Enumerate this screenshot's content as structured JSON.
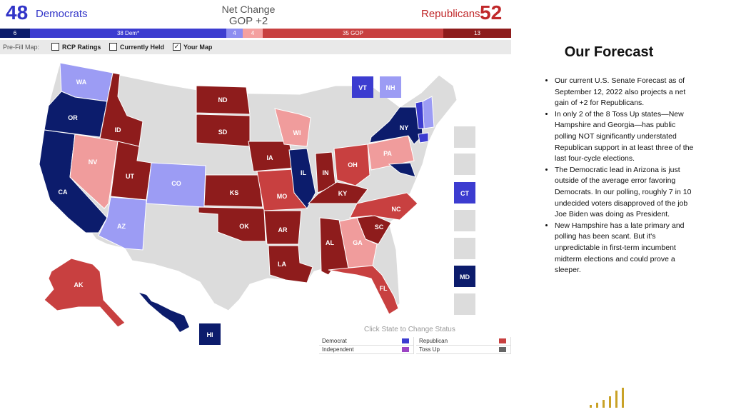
{
  "header": {
    "dem_count": "48",
    "dem_label": "Democrats",
    "net_change_label": "Net Change",
    "net_change_value": "GOP +2",
    "rep_label": "Republicans",
    "rep_count": "52"
  },
  "seat_bar": {
    "safe_dem": "6",
    "dem": "38 Dem*",
    "lean_dem": "4",
    "lean_rep": "4",
    "rep": "35 GOP",
    "safe_rep": "13"
  },
  "prefill": {
    "label": "Pre-Fill Map:",
    "options": [
      {
        "label": "RCP Ratings",
        "checked": false
      },
      {
        "label": "Currently Held",
        "checked": false
      },
      {
        "label": "Your Map",
        "checked": true
      }
    ]
  },
  "states": {
    "WA": "WA",
    "OR": "OR",
    "CA": "CA",
    "ID": "ID",
    "NV": "NV",
    "UT": "UT",
    "AZ": "AZ",
    "CO": "CO",
    "ND": "ND",
    "SD": "SD",
    "KS": "KS",
    "OK": "OK",
    "IA": "IA",
    "MO": "MO",
    "AR": "AR",
    "LA": "LA",
    "WI": "WI",
    "IL": "IL",
    "IN": "IN",
    "KY": "KY",
    "OH": "OH",
    "PA": "PA",
    "NY": "NY",
    "NC": "NC",
    "SC": "SC",
    "GA": "GA",
    "AL": "AL",
    "FL": "FL",
    "AK": "AK",
    "HI": "HI",
    "VT": "VT",
    "NH": "NH",
    "CT": "CT",
    "MD": "MD"
  },
  "legend": {
    "title": "Click State to Change Status",
    "items": [
      {
        "label": "Democrat",
        "color": "#3c3cd0"
      },
      {
        "label": "Republican",
        "color": "#c84040"
      },
      {
        "label": "Independent",
        "color": "#9c44c4"
      },
      {
        "label": "Toss Up",
        "color": "#666666"
      }
    ]
  },
  "forecast": {
    "title": "Our Forecast",
    "bullets": [
      "Our current U.S. Senate Forecast as of September 12, 2022 also projects a net gain of +2 for Republicans.",
      "In only 2 of the 8 Toss Up states—New Hampshire and Georgia—has public polling NOT significantly understated Republican support in at least three of the last four-cycle elections.",
      "The Democratic lead in Arizona is just outside of the average error favoring Democrats. In our polling, roughly 7 in 10 undecided voters disapproved of the job Joe Biden was doing as President.",
      "New Hampshire has a late primary and polling has been scant. But it's unpredictable in first-term incumbent midterm elections and could prove a sleeper."
    ]
  },
  "colors": {
    "safe_dem": "#0c1c6c",
    "dem": "#3c3cd0",
    "lean_dem": "#9c9cf4",
    "lean_rep": "#f09c9c",
    "rep": "#c84040",
    "safe_rep": "#8e1c1c",
    "none": "#dcdcdc"
  }
}
